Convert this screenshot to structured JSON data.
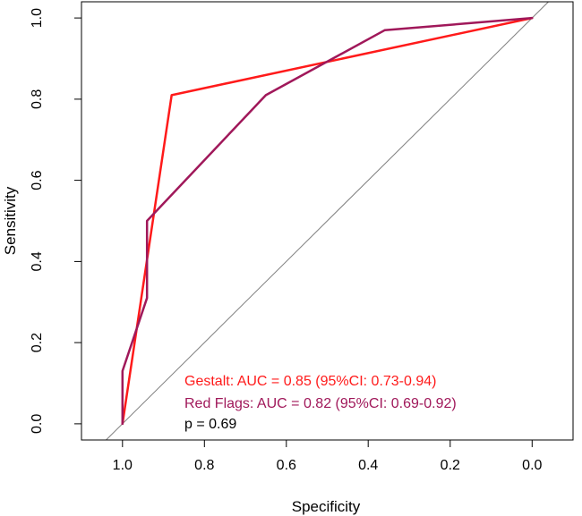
{
  "chart_data": {
    "type": "line",
    "title": "",
    "xlabel": "Specificity",
    "ylabel": "Sensitivity",
    "xlim": [
      1.1,
      -0.1
    ],
    "ylim": [
      -0.04,
      1.04
    ],
    "x_ticks": [
      "1.0",
      "0.8",
      "0.6",
      "0.4",
      "0.2",
      "0.0"
    ],
    "x_tick_values": [
      1.0,
      0.8,
      0.6,
      0.4,
      0.2,
      0.0
    ],
    "y_ticks": [
      "0.0",
      "0.2",
      "0.4",
      "0.6",
      "0.8",
      "1.0"
    ],
    "y_tick_values": [
      0.0,
      0.2,
      0.4,
      0.6,
      0.8,
      1.0
    ],
    "reference_line": {
      "name": "chance diagonal",
      "color": "#7f7f7f",
      "points": [
        [
          1.04,
          -0.04
        ],
        [
          -0.04,
          1.04
        ]
      ]
    },
    "series": [
      {
        "name": "Gestalt",
        "color": "#ff1a1a",
        "specificity": [
          1.0,
          0.88,
          0.0
        ],
        "sensitivity": [
          0.0,
          0.81,
          1.0
        ]
      },
      {
        "name": "Red Flags",
        "color": "#a0185a",
        "specificity": [
          1.0,
          1.0,
          0.94,
          0.94,
          0.94,
          0.65,
          0.36,
          0.0
        ],
        "sensitivity": [
          0.0,
          0.13,
          0.31,
          0.31,
          0.5,
          0.81,
          0.97,
          1.0
        ]
      }
    ],
    "legend": {
      "position": "bottom-right",
      "items": [
        {
          "text": "Gestalt: AUC = 0.85 (95%CI: 0.73-0.94)",
          "color": "#ff1a1a"
        },
        {
          "text": "Red Flags: AUC = 0.82 (95%CI: 0.69-0.92)",
          "color": "#a0185a"
        },
        {
          "text": "p = 0.69",
          "color": "#000000"
        }
      ]
    }
  }
}
